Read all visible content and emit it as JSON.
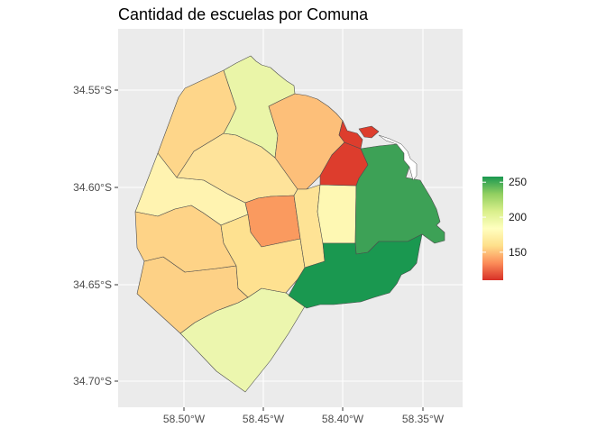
{
  "title": "Cantidad de escuelas por Comuna",
  "axes": {
    "x_ticks": [
      "58.50°W",
      "58.45°W",
      "58.40°W",
      "58.35°W"
    ],
    "y_ticks": [
      "34.55°S",
      "34.60°S",
      "34.65°S",
      "34.70°S"
    ]
  },
  "legend": {
    "placement": "right",
    "range": [
      110,
      258
    ],
    "ticks": [
      {
        "value": 250,
        "label": "250"
      },
      {
        "value": 200,
        "label": "200"
      },
      {
        "value": 150,
        "label": "150"
      }
    ],
    "colors": [
      "#d73027",
      "#fc8d59",
      "#fee08b",
      "#ffffbf",
      "#d9ef8b",
      "#91cf60",
      "#1a9850"
    ]
  },
  "chart_data": {
    "type": "choropleth",
    "title": "Cantidad de escuelas por Comuna",
    "xlabel": "",
    "ylabel": "",
    "xlim": [
      -58.535,
      -58.325
    ],
    "ylim": [
      -34.715,
      -34.525
    ],
    "grid": true,
    "colors": {
      "panel_background": "#ebebeb",
      "grid": "#ffffff",
      "border": "#4d4d4d",
      "water": "#ffffff"
    },
    "regions": [
      {
        "id": "comuna-1",
        "value": 115,
        "fill": "#dd3d2d"
      },
      {
        "id": "comuna-1b",
        "value": 115,
        "fill": "#dd3d2d"
      },
      {
        "id": "comuna-2",
        "value": 115,
        "fill": "#dd3d2d"
      },
      {
        "id": "comuna-3",
        "value": 185,
        "fill": "#fef8b3"
      },
      {
        "id": "comuna-4",
        "value": 258,
        "fill": "#1a9850"
      },
      {
        "id": "comuna-5",
        "value": 140,
        "fill": "#fa9a5f"
      },
      {
        "id": "comuna-6",
        "value": 172,
        "fill": "#fee395"
      },
      {
        "id": "comuna-7",
        "value": 172,
        "fill": "#fee190"
      },
      {
        "id": "comuna-8",
        "value": 203,
        "fill": "#eaf5a8"
      },
      {
        "id": "comuna-9",
        "value": 155,
        "fill": "#fdbf79"
      },
      {
        "id": "comuna-10",
        "value": 165,
        "fill": "#fed68a"
      },
      {
        "id": "comuna-11",
        "value": 182,
        "fill": "#fff3b0"
      },
      {
        "id": "comuna-12",
        "value": 172,
        "fill": "#fee39a"
      },
      {
        "id": "comuna-13",
        "value": 162,
        "fill": "#fed387"
      },
      {
        "id": "comuna-14",
        "value": 245,
        "fill": "#3da156"
      },
      {
        "id": "comuna-15",
        "value": 162,
        "fill": "#fdd186"
      },
      {
        "id": "comuna-16",
        "value": 203,
        "fill": "#ecf6ae"
      }
    ]
  }
}
